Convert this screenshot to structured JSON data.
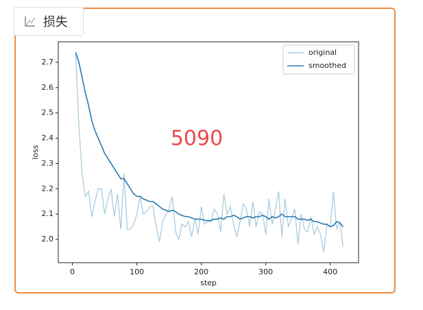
{
  "tab_label": "损失",
  "chart_data": {
    "type": "line",
    "x_label": "step",
    "y_label": "loss",
    "annotation": "5090",
    "legend": "upper right",
    "x": [
      5,
      10,
      15,
      20,
      25,
      30,
      35,
      40,
      45,
      50,
      55,
      60,
      65,
      70,
      75,
      80,
      85,
      90,
      95,
      100,
      105,
      110,
      115,
      120,
      125,
      130,
      135,
      140,
      145,
      150,
      155,
      160,
      165,
      170,
      175,
      180,
      185,
      190,
      195,
      200,
      205,
      210,
      215,
      220,
      225,
      230,
      235,
      240,
      245,
      250,
      255,
      260,
      265,
      270,
      275,
      280,
      285,
      290,
      295,
      300,
      305,
      310,
      315,
      320,
      325,
      330,
      335,
      340,
      345,
      350,
      355,
      360,
      365,
      370,
      375,
      380,
      385,
      390,
      395,
      400,
      405,
      410,
      415,
      420
    ],
    "series": [
      {
        "name": "original",
        "color": "#a9cbe0",
        "values": [
          2.74,
          2.45,
          2.26,
          2.17,
          2.19,
          2.09,
          2.15,
          2.2,
          2.2,
          2.1,
          2.16,
          2.2,
          2.09,
          2.18,
          2.04,
          2.26,
          2.04,
          2.04,
          2.06,
          2.1,
          2.17,
          2.1,
          2.11,
          2.13,
          2.13,
          2.05,
          1.99,
          2.07,
          2.1,
          2.12,
          2.17,
          2.03,
          2.0,
          2.06,
          2.05,
          2.07,
          2.01,
          2.08,
          2.02,
          2.13,
          2.06,
          2.07,
          2.07,
          2.12,
          2.1,
          2.03,
          2.18,
          2.1,
          2.13,
          2.06,
          2.01,
          2.07,
          2.14,
          2.12,
          2.05,
          2.15,
          2.05,
          2.11,
          2.1,
          2.02,
          2.16,
          2.06,
          2.12,
          2.19,
          2.01,
          2.16,
          2.05,
          2.08,
          2.12,
          1.98,
          2.1,
          2.04,
          2.03,
          2.09,
          2.02,
          2.05,
          2.02,
          1.95,
          2.06,
          2.05,
          2.19,
          2.04,
          2.07,
          1.97
        ]
      },
      {
        "name": "smoothed",
        "color": "#2878b0",
        "values": [
          2.74,
          2.7,
          2.64,
          2.58,
          2.53,
          2.47,
          2.43,
          2.4,
          2.37,
          2.34,
          2.32,
          2.3,
          2.28,
          2.26,
          2.24,
          2.24,
          2.22,
          2.2,
          2.18,
          2.17,
          2.17,
          2.16,
          2.155,
          2.15,
          2.15,
          2.14,
          2.13,
          2.12,
          2.115,
          2.11,
          2.115,
          2.11,
          2.1,
          2.095,
          2.09,
          2.09,
          2.085,
          2.08,
          2.08,
          2.08,
          2.075,
          2.075,
          2.075,
          2.08,
          2.08,
          2.085,
          2.08,
          2.09,
          2.09,
          2.095,
          2.09,
          2.08,
          2.085,
          2.09,
          2.09,
          2.085,
          2.09,
          2.09,
          2.095,
          2.09,
          2.08,
          2.09,
          2.085,
          2.09,
          2.1,
          2.09,
          2.09,
          2.09,
          2.09,
          2.08,
          2.08,
          2.08,
          2.075,
          2.08,
          2.07,
          2.07,
          2.065,
          2.06,
          2.06,
          2.05,
          2.055,
          2.07,
          2.065,
          2.05
        ]
      }
    ],
    "xlim": [
      -22,
      444
    ],
    "xticks": [
      0,
      100,
      200,
      300,
      400
    ],
    "ylim": [
      1.908,
      2.781
    ],
    "yticks": [
      {
        "value": 2,
        "label": "2.0"
      },
      2.1,
      2.2,
      2.3,
      2.4,
      2.5,
      2.6,
      2.7
    ]
  }
}
